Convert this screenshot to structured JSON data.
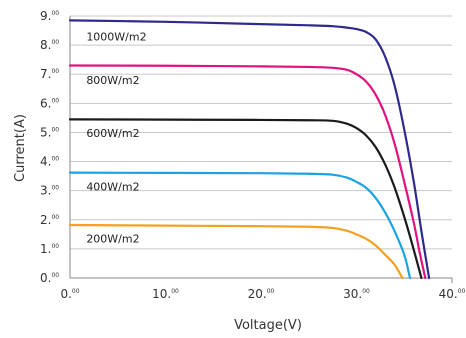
{
  "chart_data": {
    "type": "line",
    "xlabel": "Voltage(V)",
    "ylabel": "Current(A)",
    "xlim": [
      0,
      40
    ],
    "ylim": [
      0,
      9
    ],
    "x_ticks": [
      {
        "main": "0.",
        "sup": "00",
        "value": 0
      },
      {
        "main": "10.",
        "sup": "00",
        "value": 10
      },
      {
        "main": "20.",
        "sup": "00",
        "value": 20
      },
      {
        "main": "30.",
        "sup": "00",
        "value": 30
      },
      {
        "main": "40.",
        "sup": "00",
        "value": 40
      }
    ],
    "y_ticks": [
      {
        "main": "0.",
        "sup": "00",
        "value": 0
      },
      {
        "main": "1.",
        "sup": "00",
        "value": 1
      },
      {
        "main": "2.",
        "sup": "00",
        "value": 2
      },
      {
        "main": "3.",
        "sup": "00",
        "value": 3
      },
      {
        "main": "4.",
        "sup": "00",
        "value": 4
      },
      {
        "main": "5.",
        "sup": "00",
        "value": 5
      },
      {
        "main": "6.",
        "sup": "00",
        "value": 6
      },
      {
        "main": "7.",
        "sup": "00",
        "value": 7
      },
      {
        "main": "8.",
        "sup": "00",
        "value": 8
      },
      {
        "main": "9.",
        "sup": "00",
        "value": 9
      }
    ],
    "grid": {
      "horizontal": true,
      "vertical": false,
      "color": "#c8c8c8"
    },
    "series": [
      {
        "name": "1000W/m2",
        "color": "#2e2a8c",
        "points": [
          [
            0,
            8.85
          ],
          [
            10,
            8.8
          ],
          [
            20,
            8.72
          ],
          [
            25,
            8.68
          ],
          [
            27.5,
            8.65
          ],
          [
            29,
            8.6
          ],
          [
            30,
            8.55
          ],
          [
            31,
            8.45
          ],
          [
            32,
            8.2
          ],
          [
            33,
            7.6
          ],
          [
            34,
            6.6
          ],
          [
            35,
            5.1
          ],
          [
            36,
            3.3
          ],
          [
            36.8,
            1.6
          ],
          [
            37.6,
            0
          ]
        ]
      },
      {
        "name": "800W/m2",
        "color": "#e0127e",
        "points": [
          [
            0,
            7.3
          ],
          [
            10,
            7.29
          ],
          [
            20,
            7.27
          ],
          [
            25,
            7.25
          ],
          [
            27.5,
            7.22
          ],
          [
            29,
            7.15
          ],
          [
            30,
            7.0
          ],
          [
            31,
            6.75
          ],
          [
            32,
            6.3
          ],
          [
            33,
            5.6
          ],
          [
            34,
            4.6
          ],
          [
            35,
            3.3
          ],
          [
            36,
            1.9
          ],
          [
            36.6,
            0.9
          ],
          [
            37.2,
            0
          ]
        ]
      },
      {
        "name": "600W/m2",
        "color": "#1a1a1a",
        "points": [
          [
            0,
            5.45
          ],
          [
            10,
            5.44
          ],
          [
            20,
            5.43
          ],
          [
            25,
            5.42
          ],
          [
            27.5,
            5.4
          ],
          [
            29,
            5.3
          ],
          [
            30,
            5.15
          ],
          [
            31,
            4.9
          ],
          [
            32,
            4.5
          ],
          [
            33,
            3.9
          ],
          [
            34,
            3.1
          ],
          [
            35,
            2.1
          ],
          [
            35.8,
            1.2
          ],
          [
            36.8,
            0
          ]
        ]
      },
      {
        "name": "400W/m2",
        "color": "#1aa3e0",
        "points": [
          [
            0,
            3.62
          ],
          [
            10,
            3.61
          ],
          [
            20,
            3.6
          ],
          [
            25,
            3.58
          ],
          [
            27.5,
            3.55
          ],
          [
            29,
            3.45
          ],
          [
            30,
            3.3
          ],
          [
            31,
            3.1
          ],
          [
            32,
            2.75
          ],
          [
            33,
            2.25
          ],
          [
            34,
            1.6
          ],
          [
            35,
            0.8
          ],
          [
            35.6,
            0
          ]
        ]
      },
      {
        "name": "200W/m2",
        "color": "#f4a020",
        "points": [
          [
            0,
            1.82
          ],
          [
            10,
            1.8
          ],
          [
            20,
            1.78
          ],
          [
            25,
            1.76
          ],
          [
            27.5,
            1.72
          ],
          [
            29,
            1.62
          ],
          [
            30,
            1.5
          ],
          [
            31,
            1.35
          ],
          [
            32,
            1.12
          ],
          [
            33,
            0.8
          ],
          [
            34,
            0.45
          ],
          [
            34.8,
            0
          ]
        ]
      }
    ],
    "labels": [
      {
        "text": "1000W/m2",
        "x": 1.5,
        "y": 8.3
      },
      {
        "text": "800W/m2",
        "x": 1.5,
        "y": 6.8
      },
      {
        "text": "600W/m2",
        "x": 1.5,
        "y": 4.98
      },
      {
        "text": "400W/m2",
        "x": 1.5,
        "y": 3.15
      },
      {
        "text": "200W/m2",
        "x": 1.5,
        "y": 1.35
      }
    ]
  }
}
